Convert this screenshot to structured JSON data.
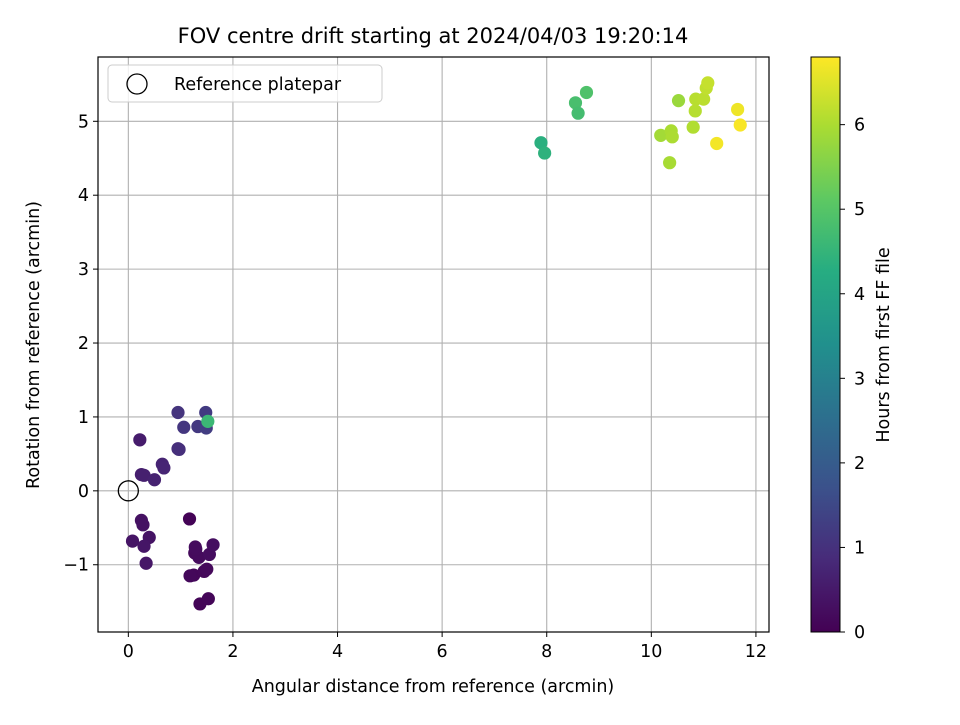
{
  "chart_data": {
    "type": "scatter",
    "title": "FOV centre drift starting at 2024/04/03 19:20:14",
    "xlabel": "Angular distance from reference (arcmin)",
    "ylabel": "Rotation from reference (arcmin)",
    "xlim": [
      -0.58,
      12.25
    ],
    "ylim": [
      -1.91,
      5.87
    ],
    "xticks": [
      0,
      2,
      4,
      6,
      8,
      10,
      12
    ],
    "yticks": [
      -1,
      0,
      1,
      2,
      3,
      4,
      5
    ],
    "xtick_labels": [
      "0",
      "2",
      "4",
      "6",
      "8",
      "10",
      "12"
    ],
    "ytick_labels": [
      "−1",
      "0",
      "1",
      "2",
      "3",
      "4",
      "5"
    ],
    "grid": true,
    "colormap": "viridis",
    "colorbar": {
      "label": "Hours from first FF file",
      "range": [
        0,
        6.8
      ],
      "ticks": [
        0,
        1,
        2,
        3,
        4,
        5,
        6
      ],
      "tick_labels": [
        "0",
        "1",
        "2",
        "3",
        "4",
        "5",
        "6"
      ]
    },
    "legend": {
      "position": "top-left",
      "entries": [
        "Reference platepar"
      ]
    },
    "reference_point": {
      "x": 0,
      "y": 0
    },
    "points": [
      {
        "x": 1.17,
        "y": -0.38,
        "c": 0.05
      },
      {
        "x": 1.37,
        "y": -1.53,
        "c": 0.08
      },
      {
        "x": 1.53,
        "y": -1.46,
        "c": 0.1
      },
      {
        "x": 1.25,
        "y": -1.14,
        "c": 0.12
      },
      {
        "x": 1.18,
        "y": -1.15,
        "c": 0.14
      },
      {
        "x": 1.45,
        "y": -1.09,
        "c": 0.15
      },
      {
        "x": 1.5,
        "y": -1.06,
        "c": 0.17
      },
      {
        "x": 1.27,
        "y": -0.84,
        "c": 0.18
      },
      {
        "x": 1.35,
        "y": -0.9,
        "c": 0.2
      },
      {
        "x": 1.29,
        "y": -0.79,
        "c": 0.22
      },
      {
        "x": 1.28,
        "y": -0.76,
        "c": 0.23
      },
      {
        "x": 1.55,
        "y": -0.86,
        "c": 0.25
      },
      {
        "x": 1.62,
        "y": -0.73,
        "c": 0.27
      },
      {
        "x": 0.25,
        "y": -0.4,
        "c": 0.33
      },
      {
        "x": 0.28,
        "y": -0.46,
        "c": 0.35
      },
      {
        "x": 0.4,
        "y": -0.63,
        "c": 0.37
      },
      {
        "x": 0.08,
        "y": -0.68,
        "c": 0.4
      },
      {
        "x": 0.3,
        "y": -0.75,
        "c": 0.42
      },
      {
        "x": 0.34,
        "y": -0.98,
        "c": 0.45
      },
      {
        "x": 0.22,
        "y": 0.69,
        "c": 0.55
      },
      {
        "x": 0.25,
        "y": 0.22,
        "c": 0.6
      },
      {
        "x": 0.3,
        "y": 0.21,
        "c": 0.63
      },
      {
        "x": 0.5,
        "y": 0.15,
        "c": 0.67
      },
      {
        "x": 0.65,
        "y": 0.36,
        "c": 0.72
      },
      {
        "x": 0.68,
        "y": 0.31,
        "c": 0.75
      },
      {
        "x": 0.95,
        "y": 0.57,
        "c": 0.92
      },
      {
        "x": 0.97,
        "y": 0.56,
        "c": 0.95
      },
      {
        "x": 0.95,
        "y": 1.06,
        "c": 1.05
      },
      {
        "x": 1.06,
        "y": 0.86,
        "c": 1.1
      },
      {
        "x": 1.33,
        "y": 0.87,
        "c": 1.15
      },
      {
        "x": 1.48,
        "y": 1.06,
        "c": 1.2
      },
      {
        "x": 1.49,
        "y": 0.85,
        "c": 1.25
      },
      {
        "x": 1.52,
        "y": 0.94,
        "c": 4.6
      },
      {
        "x": 7.89,
        "y": 4.71,
        "c": 4.35
      },
      {
        "x": 7.96,
        "y": 4.57,
        "c": 4.4
      },
      {
        "x": 8.55,
        "y": 5.25,
        "c": 4.8
      },
      {
        "x": 8.6,
        "y": 5.11,
        "c": 4.75
      },
      {
        "x": 8.76,
        "y": 5.39,
        "c": 4.9
      },
      {
        "x": 10.18,
        "y": 4.81,
        "c": 5.9
      },
      {
        "x": 10.35,
        "y": 4.44,
        "c": 5.95
      },
      {
        "x": 10.38,
        "y": 4.87,
        "c": 5.98
      },
      {
        "x": 10.4,
        "y": 4.79,
        "c": 6.0
      },
      {
        "x": 10.52,
        "y": 5.28,
        "c": 5.8
      },
      {
        "x": 10.8,
        "y": 4.92,
        "c": 6.05
      },
      {
        "x": 10.84,
        "y": 5.14,
        "c": 6.1
      },
      {
        "x": 10.85,
        "y": 5.3,
        "c": 6.12
      },
      {
        "x": 11.0,
        "y": 5.3,
        "c": 6.15
      },
      {
        "x": 11.05,
        "y": 5.45,
        "c": 6.2
      },
      {
        "x": 11.08,
        "y": 5.52,
        "c": 6.25
      },
      {
        "x": 11.25,
        "y": 4.7,
        "c": 6.7
      },
      {
        "x": 11.65,
        "y": 5.16,
        "c": 6.65
      },
      {
        "x": 11.7,
        "y": 4.95,
        "c": 6.75
      }
    ]
  }
}
